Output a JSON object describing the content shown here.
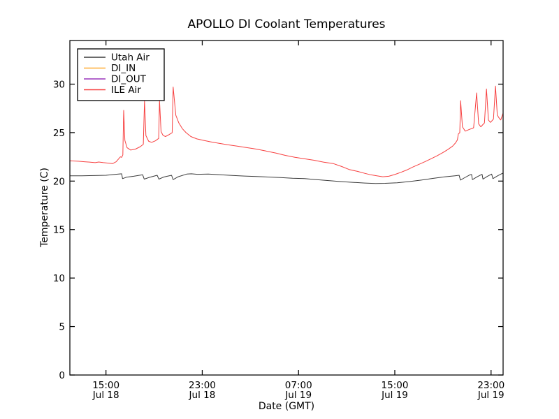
{
  "chart_data": {
    "type": "line",
    "title": "APOLLO DI Coolant Temperatures",
    "xlabel": "Date (GMT)",
    "ylabel": "Temperature (C)",
    "x_unit_note": "hours after Jul 18 12:00 GMT",
    "x_range": [
      0,
      36
    ],
    "y_range": [
      0,
      34.5
    ],
    "y_ticks": [
      0,
      5,
      10,
      15,
      20,
      25,
      30
    ],
    "x_ticks": [
      {
        "pos": 3,
        "time": "15:00",
        "date": "Jul 18"
      },
      {
        "pos": 11,
        "time": "23:00",
        "date": "Jul 18"
      },
      {
        "pos": 19,
        "time": "07:00",
        "date": "Jul 19"
      },
      {
        "pos": 27,
        "time": "15:00",
        "date": "Jul 19"
      },
      {
        "pos": 35,
        "time": "23:00",
        "date": "Jul 19"
      }
    ],
    "grid": false,
    "legend_position": "upper left",
    "series": [
      {
        "name": "Utah Air",
        "color": "#3a3a3a",
        "points": [
          [
            0,
            20.55
          ],
          [
            1,
            20.55
          ],
          [
            2,
            20.57
          ],
          [
            3,
            20.6
          ],
          [
            3.8,
            20.7
          ],
          [
            4.3,
            20.75
          ],
          [
            4.38,
            20.25
          ],
          [
            4.7,
            20.4
          ],
          [
            5.3,
            20.5
          ],
          [
            6.05,
            20.65
          ],
          [
            6.18,
            20.2
          ],
          [
            6.6,
            20.38
          ],
          [
            7.25,
            20.6
          ],
          [
            7.4,
            20.2
          ],
          [
            7.8,
            20.42
          ],
          [
            8.45,
            20.6
          ],
          [
            8.58,
            20.15
          ],
          [
            9.0,
            20.45
          ],
          [
            9.7,
            20.72
          ],
          [
            10.1,
            20.75
          ],
          [
            10.6,
            20.7
          ],
          [
            11.5,
            20.72
          ],
          [
            12.5,
            20.65
          ],
          [
            13.5,
            20.58
          ],
          [
            14.5,
            20.52
          ],
          [
            15.5,
            20.47
          ],
          [
            16.5,
            20.42
          ],
          [
            17.5,
            20.37
          ],
          [
            18.5,
            20.3
          ],
          [
            19.5,
            20.25
          ],
          [
            20.5,
            20.15
          ],
          [
            21.5,
            20.05
          ],
          [
            22.5,
            19.95
          ],
          [
            23.5,
            19.87
          ],
          [
            24.5,
            19.8
          ],
          [
            25.4,
            19.76
          ],
          [
            26.2,
            19.77
          ],
          [
            27.2,
            19.83
          ],
          [
            28.2,
            19.95
          ],
          [
            29.2,
            20.1
          ],
          [
            30.2,
            20.28
          ],
          [
            31.2,
            20.45
          ],
          [
            32.0,
            20.55
          ],
          [
            32.35,
            20.6
          ],
          [
            32.45,
            20.1
          ],
          [
            32.8,
            20.35
          ],
          [
            33.25,
            20.65
          ],
          [
            33.38,
            20.68
          ],
          [
            33.45,
            20.15
          ],
          [
            33.85,
            20.45
          ],
          [
            34.25,
            20.7
          ],
          [
            34.33,
            20.2
          ],
          [
            34.7,
            20.5
          ],
          [
            35.05,
            20.72
          ],
          [
            35.15,
            20.25
          ],
          [
            35.55,
            20.55
          ],
          [
            35.95,
            20.8
          ],
          [
            36,
            20.78
          ]
        ]
      },
      {
        "name": "DI_IN",
        "color": "#ffad33",
        "points": []
      },
      {
        "name": "DI_OUT",
        "color": "#9933bb",
        "points": []
      },
      {
        "name": "ILE Air",
        "color": "#f74040",
        "points": [
          [
            0,
            22.1
          ],
          [
            0.7,
            22.05
          ],
          [
            1.2,
            22.0
          ],
          [
            1.7,
            21.95
          ],
          [
            2.1,
            21.9
          ],
          [
            2.4,
            21.97
          ],
          [
            2.8,
            21.9
          ],
          [
            3.2,
            21.85
          ],
          [
            3.55,
            21.8
          ],
          [
            3.85,
            22.0
          ],
          [
            4.05,
            22.3
          ],
          [
            4.2,
            22.5
          ],
          [
            4.3,
            22.45
          ],
          [
            4.4,
            22.7
          ],
          [
            4.47,
            27.3
          ],
          [
            4.57,
            24.2
          ],
          [
            4.75,
            23.45
          ],
          [
            5.05,
            23.2
          ],
          [
            5.45,
            23.3
          ],
          [
            5.85,
            23.55
          ],
          [
            6.1,
            23.8
          ],
          [
            6.2,
            28.3
          ],
          [
            6.32,
            24.7
          ],
          [
            6.55,
            24.1
          ],
          [
            6.8,
            24.0
          ],
          [
            7.1,
            24.15
          ],
          [
            7.38,
            24.4
          ],
          [
            7.45,
            28.3
          ],
          [
            7.58,
            25.1
          ],
          [
            7.75,
            24.7
          ],
          [
            7.95,
            24.6
          ],
          [
            8.25,
            24.8
          ],
          [
            8.5,
            25.0
          ],
          [
            8.58,
            29.7
          ],
          [
            8.8,
            26.8
          ],
          [
            9.05,
            26.0
          ],
          [
            9.35,
            25.4
          ],
          [
            9.65,
            25.0
          ],
          [
            10.05,
            24.6
          ],
          [
            10.55,
            24.35
          ],
          [
            11.1,
            24.2
          ],
          [
            11.7,
            24.05
          ],
          [
            12.4,
            23.9
          ],
          [
            13.1,
            23.75
          ],
          [
            13.9,
            23.6
          ],
          [
            14.7,
            23.45
          ],
          [
            15.5,
            23.3
          ],
          [
            16.3,
            23.1
          ],
          [
            17.1,
            22.9
          ],
          [
            17.9,
            22.65
          ],
          [
            18.7,
            22.45
          ],
          [
            19.5,
            22.3
          ],
          [
            20.3,
            22.15
          ],
          [
            21.1,
            21.95
          ],
          [
            21.9,
            21.8
          ],
          [
            22.6,
            21.5
          ],
          [
            23.2,
            21.2
          ],
          [
            23.9,
            21.0
          ],
          [
            24.5,
            20.8
          ],
          [
            25.0,
            20.65
          ],
          [
            25.5,
            20.55
          ],
          [
            26.0,
            20.45
          ],
          [
            26.5,
            20.5
          ],
          [
            27.0,
            20.68
          ],
          [
            27.5,
            20.9
          ],
          [
            28.0,
            21.15
          ],
          [
            28.5,
            21.45
          ],
          [
            29.0,
            21.72
          ],
          [
            29.5,
            22.0
          ],
          [
            30.0,
            22.3
          ],
          [
            30.5,
            22.6
          ],
          [
            31.0,
            22.95
          ],
          [
            31.4,
            23.25
          ],
          [
            31.8,
            23.6
          ],
          [
            32.05,
            23.95
          ],
          [
            32.2,
            24.25
          ],
          [
            32.28,
            24.85
          ],
          [
            32.4,
            25.0
          ],
          [
            32.47,
            28.3
          ],
          [
            32.62,
            25.6
          ],
          [
            32.85,
            25.15
          ],
          [
            33.15,
            25.3
          ],
          [
            33.55,
            25.5
          ],
          [
            33.8,
            29.1
          ],
          [
            33.97,
            25.9
          ],
          [
            34.15,
            25.6
          ],
          [
            34.45,
            26.0
          ],
          [
            34.62,
            29.5
          ],
          [
            34.78,
            26.3
          ],
          [
            34.95,
            26.05
          ],
          [
            35.2,
            26.4
          ],
          [
            35.37,
            29.8
          ],
          [
            35.52,
            26.8
          ],
          [
            35.7,
            26.45
          ],
          [
            35.8,
            26.3
          ],
          [
            36,
            27.0
          ]
        ]
      }
    ],
    "axis_color": "#000000",
    "background_color": "#ffffff"
  }
}
